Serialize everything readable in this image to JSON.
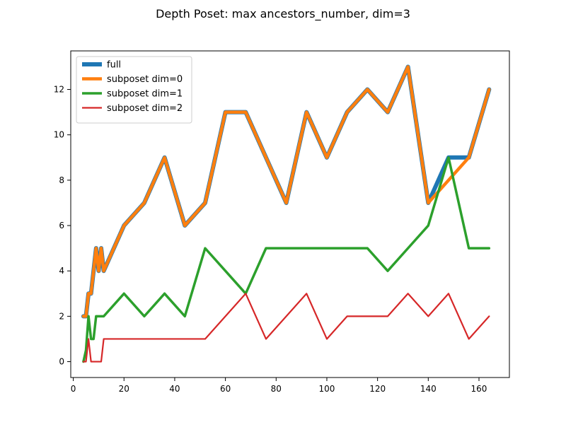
{
  "chart_data": {
    "type": "line",
    "title": "Depth Poset: max ancestors_number, dim=3",
    "xlabel": "",
    "ylabel": "",
    "xlim": [
      -1.0,
      172.0
    ],
    "ylim": [
      -0.7,
      13.7
    ],
    "xticks": [
      0,
      20,
      40,
      60,
      80,
      100,
      120,
      140,
      160
    ],
    "yticks": [
      0,
      2,
      4,
      6,
      8,
      10,
      12
    ],
    "grid": false,
    "legend_position": "upper-left",
    "series": [
      {
        "name": "full",
        "color": "#1f77b4",
        "width": 6,
        "x": [
          4,
          5,
          6,
          7,
          8,
          9,
          10,
          11,
          12,
          20,
          28,
          36,
          44,
          52,
          60,
          68,
          76,
          84,
          92,
          100,
          108,
          116,
          124,
          132,
          140,
          148,
          156,
          164
        ],
        "y": [
          2,
          2,
          3,
          3,
          4,
          5,
          4,
          5,
          4,
          6,
          7,
          9,
          6,
          7,
          11,
          11,
          9,
          7,
          11,
          9,
          11,
          12,
          11,
          13,
          7,
          9,
          9,
          12
        ]
      },
      {
        "name": "subposet dim=0",
        "color": "#ff7f0e",
        "width": 4.5,
        "x": [
          4,
          5,
          6,
          7,
          8,
          9,
          10,
          11,
          12,
          20,
          28,
          36,
          44,
          52,
          60,
          68,
          76,
          84,
          92,
          100,
          108,
          116,
          124,
          132,
          140,
          148,
          156,
          164
        ],
        "y": [
          2,
          2,
          3,
          3,
          4,
          5,
          4,
          5,
          4,
          6,
          7,
          9,
          6,
          7,
          11,
          11,
          9,
          7,
          11,
          9,
          11,
          12,
          11,
          13,
          7,
          8,
          9,
          12
        ]
      },
      {
        "name": "subposet dim=1",
        "color": "#2ca02c",
        "width": 3.5,
        "x": [
          4,
          5,
          6,
          7,
          8,
          9,
          10,
          11,
          12,
          20,
          28,
          36,
          44,
          52,
          60,
          68,
          76,
          84,
          92,
          100,
          108,
          116,
          124,
          132,
          140,
          148,
          156,
          164
        ],
        "y": [
          0,
          0.5,
          2,
          1,
          1,
          2,
          2,
          2,
          2,
          3,
          2,
          3,
          2,
          5,
          4,
          3,
          5,
          5,
          5,
          5,
          5,
          5,
          4,
          5,
          6,
          9,
          5,
          5
        ]
      },
      {
        "name": "subposet dim=2",
        "color": "#d62728",
        "width": 2.2,
        "x": [
          4,
          5,
          6,
          7,
          8,
          9,
          10,
          11,
          12,
          20,
          28,
          36,
          44,
          52,
          60,
          68,
          76,
          84,
          92,
          100,
          108,
          116,
          124,
          132,
          140,
          148,
          156,
          164
        ],
        "y": [
          0,
          0,
          1,
          0,
          0,
          0,
          0,
          0,
          1,
          1,
          1,
          1,
          1,
          1,
          2,
          3,
          1,
          2,
          3,
          1,
          2,
          2,
          2,
          3,
          2,
          3,
          1,
          2
        ]
      }
    ]
  }
}
